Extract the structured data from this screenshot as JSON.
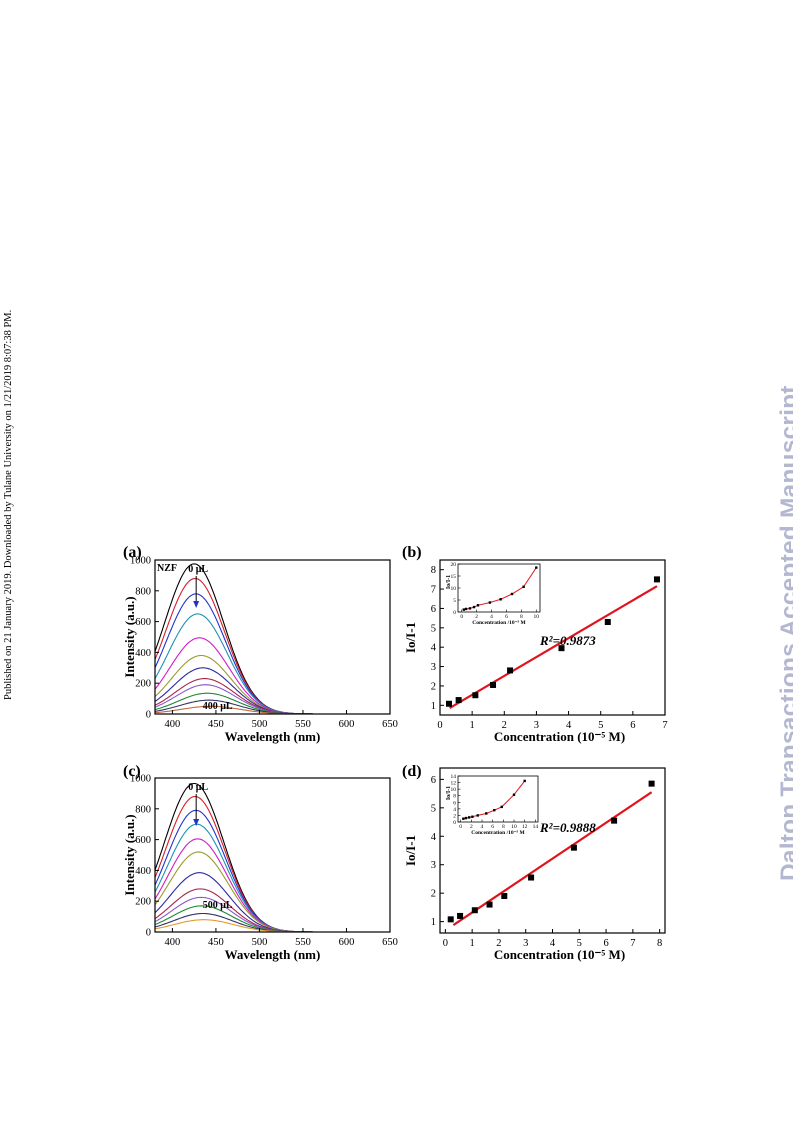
{
  "side_note": "Published on 21 January 2019. Downloaded by Tulane University on 1/21/2019 8:07:38 PM.",
  "watermark": "Dalton Transactions Accepted Manuscript",
  "chart_data": [
    {
      "panel": "(a)",
      "type": "line",
      "annotation": "NZF",
      "xlabel": "Wavelength (nm)",
      "ylabel": "Intensity (a.u.)",
      "xlim": [
        380,
        650
      ],
      "ylim": [
        0,
        1000
      ],
      "xticks": [
        400,
        450,
        500,
        550,
        600,
        650
      ],
      "yticks": [
        0,
        200,
        400,
        600,
        800,
        1000
      ],
      "arrow_start_label": "0 μL",
      "arrow_end_label": "400 μL",
      "sigma": 34,
      "series": [
        {
          "color": "#000000",
          "peak_x": 425,
          "peak": 975
        },
        {
          "color": "#d4202a",
          "peak_x": 426,
          "peak": 880
        },
        {
          "color": "#2233cc",
          "peak_x": 427,
          "peak": 780
        },
        {
          "color": "#1e93b4",
          "peak_x": 429,
          "peak": 650
        },
        {
          "color": "#d21ac8",
          "peak_x": 431,
          "peak": 495
        },
        {
          "color": "#9a9a30",
          "peak_x": 433,
          "peak": 380
        },
        {
          "color": "#2a2aa0",
          "peak_x": 435,
          "peak": 300
        },
        {
          "color": "#a8264a",
          "peak_x": 437,
          "peak": 230
        },
        {
          "color": "#8a55cc",
          "peak_x": 438,
          "peak": 190
        },
        {
          "color": "#1c8a30",
          "peak_x": 440,
          "peak": 135
        },
        {
          "color": "#333366",
          "peak_x": 442,
          "peak": 90
        },
        {
          "color": "#c06a40",
          "peak_x": 444,
          "peak": 50
        }
      ]
    },
    {
      "panel": "(b)",
      "type": "scatter",
      "xlabel": "Concentration (10⁻⁵ M)",
      "ylabel": "Io/I-1",
      "xlim": [
        0,
        7
      ],
      "ylim": [
        0.5,
        8.5
      ],
      "xticks": [
        0,
        1,
        2,
        3,
        4,
        5,
        6,
        7
      ],
      "yticks": [
        1,
        2,
        3,
        4,
        5,
        6,
        7,
        8
      ],
      "r2_label": "R²=0.9873",
      "points": [
        [
          0.28,
          1.08
        ],
        [
          0.58,
          1.27
        ],
        [
          1.1,
          1.52
        ],
        [
          1.65,
          2.05
        ],
        [
          2.18,
          2.8
        ],
        [
          3.78,
          3.95
        ],
        [
          5.22,
          5.3
        ],
        [
          6.75,
          7.5
        ]
      ],
      "fit": [
        [
          0.3,
          0.86
        ],
        [
          6.75,
          7.15
        ]
      ],
      "inset": {
        "xlabel": "Concentration /10⁻⁵ M",
        "ylabel": "Io/I-1",
        "xlim": [
          -0.5,
          10.5
        ],
        "ylim": [
          0,
          20
        ],
        "xticks": [
          0,
          2,
          4,
          6,
          8,
          10
        ],
        "yticks": [
          0,
          5,
          10,
          15,
          20
        ],
        "points": [
          [
            0.28,
            1.0
          ],
          [
            0.58,
            1.27
          ],
          [
            1.1,
            1.5
          ],
          [
            1.65,
            2.05
          ],
          [
            2.18,
            2.8
          ],
          [
            3.78,
            3.95
          ],
          [
            5.22,
            5.3
          ],
          [
            6.75,
            7.5
          ],
          [
            8.3,
            10.5
          ],
          [
            10,
            18.5
          ]
        ]
      }
    },
    {
      "panel": "(c)",
      "type": "line",
      "xlabel": "Wavelength (nm)",
      "ylabel": "Intensity (a.u.)",
      "xlim": [
        380,
        650
      ],
      "ylim": [
        0,
        1000
      ],
      "xticks": [
        400,
        450,
        500,
        550,
        600,
        650
      ],
      "yticks": [
        0,
        200,
        400,
        600,
        800,
        1000
      ],
      "arrow_start_label": "0 μL",
      "arrow_end_label": "500 μL",
      "sigma": 34,
      "series": [
        {
          "color": "#000000",
          "peak_x": 425,
          "peak": 965
        },
        {
          "color": "#d4202a",
          "peak_x": 426,
          "peak": 880
        },
        {
          "color": "#2233cc",
          "peak_x": 427,
          "peak": 790
        },
        {
          "color": "#1e93b4",
          "peak_x": 428,
          "peak": 700
        },
        {
          "color": "#d21ac8",
          "peak_x": 429,
          "peak": 605
        },
        {
          "color": "#9a9a30",
          "peak_x": 430,
          "peak": 520
        },
        {
          "color": "#2a2aa0",
          "peak_x": 431,
          "peak": 385
        },
        {
          "color": "#a8264a",
          "peak_x": 432,
          "peak": 280
        },
        {
          "color": "#8a55cc",
          "peak_x": 433,
          "peak": 225
        },
        {
          "color": "#1c8a30",
          "peak_x": 434,
          "peak": 170
        },
        {
          "color": "#333366",
          "peak_x": 435,
          "peak": 120
        },
        {
          "color": "#e09a2a",
          "peak_x": 436,
          "peak": 80
        }
      ]
    },
    {
      "panel": "(d)",
      "type": "scatter",
      "xlabel": "Concentration (10⁻⁵ M)",
      "ylabel": "Io/I-1",
      "xlim": [
        -0.2,
        8.2
      ],
      "ylim": [
        0.6,
        6.4
      ],
      "xticks": [
        0,
        1,
        2,
        3,
        4,
        5,
        6,
        7,
        8
      ],
      "yticks": [
        1,
        2,
        3,
        4,
        5,
        6
      ],
      "r2_label": "R²=0.9888",
      "points": [
        [
          0.2,
          1.08
        ],
        [
          0.55,
          1.2
        ],
        [
          1.1,
          1.4
        ],
        [
          1.65,
          1.6
        ],
        [
          2.2,
          1.9
        ],
        [
          3.2,
          2.55
        ],
        [
          4.8,
          3.6
        ],
        [
          6.3,
          4.55
        ],
        [
          7.7,
          5.85
        ]
      ],
      "fit": [
        [
          0.3,
          0.88
        ],
        [
          7.7,
          5.55
        ]
      ],
      "inset": {
        "xlabel": "Concentration /10⁻⁵ M",
        "ylabel": "Io/I-1",
        "xlim": [
          -0.5,
          14.5
        ],
        "ylim": [
          0,
          14
        ],
        "xticks": [
          0,
          2,
          4,
          6,
          8,
          10,
          12,
          14
        ],
        "yticks": [
          0,
          2,
          4,
          6,
          8,
          10,
          12,
          14
        ],
        "points": [
          [
            0.5,
            1.0
          ],
          [
            1.0,
            1.2
          ],
          [
            1.6,
            1.4
          ],
          [
            2.2,
            1.6
          ],
          [
            3.2,
            2.0
          ],
          [
            4.8,
            2.6
          ],
          [
            6.3,
            3.6
          ],
          [
            7.7,
            4.6
          ],
          [
            10,
            8.3
          ],
          [
            12,
            12.5
          ]
        ]
      }
    }
  ]
}
